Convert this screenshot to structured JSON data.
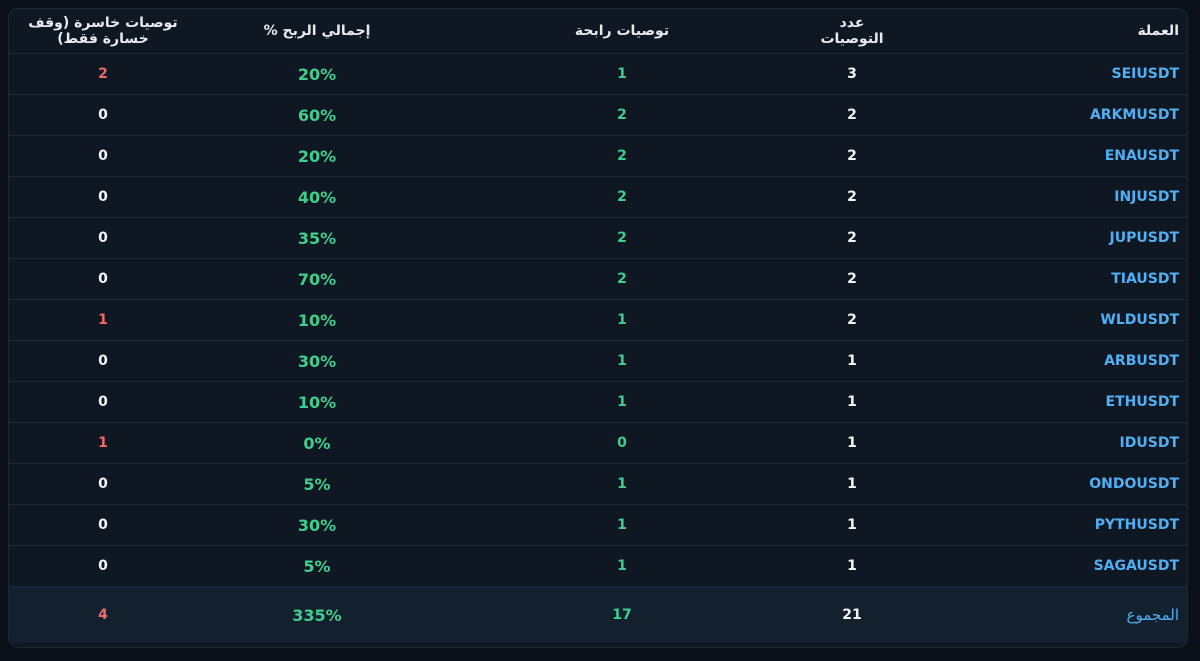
{
  "table": {
    "headers": {
      "coin": "العملة",
      "count": "عدد التوصيات",
      "win": "توصيات رابحة",
      "profit": "إجمالي الربح %",
      "loss": "توصيات خاسرة (وقف خسارة فقط)"
    },
    "rows": [
      {
        "coin": "SEIUSDT",
        "count": "3",
        "win": "1",
        "profit": "20%",
        "loss": "2"
      },
      {
        "coin": "ARKMUSDT",
        "count": "2",
        "win": "2",
        "profit": "60%",
        "loss": "0"
      },
      {
        "coin": "ENAUSDT",
        "count": "2",
        "win": "2",
        "profit": "20%",
        "loss": "0"
      },
      {
        "coin": "INJUSDT",
        "count": "2",
        "win": "2",
        "profit": "40%",
        "loss": "0"
      },
      {
        "coin": "JUPUSDT",
        "count": "2",
        "win": "2",
        "profit": "35%",
        "loss": "0"
      },
      {
        "coin": "TIAUSDT",
        "count": "2",
        "win": "2",
        "profit": "70%",
        "loss": "0"
      },
      {
        "coin": "WLDUSDT",
        "count": "2",
        "win": "1",
        "profit": "10%",
        "loss": "1"
      },
      {
        "coin": "ARBUSDT",
        "count": "1",
        "win": "1",
        "profit": "30%",
        "loss": "0"
      },
      {
        "coin": "ETHUSDT",
        "count": "1",
        "win": "1",
        "profit": "10%",
        "loss": "0"
      },
      {
        "coin": "IDUSDT",
        "count": "1",
        "win": "0",
        "profit": "0%",
        "loss": "1"
      },
      {
        "coin": "ONDOUSDT",
        "count": "1",
        "win": "1",
        "profit": "5%",
        "loss": "0"
      },
      {
        "coin": "PYTHUSDT",
        "count": "1",
        "win": "1",
        "profit": "30%",
        "loss": "0"
      },
      {
        "coin": "SAGAUSDT",
        "count": "1",
        "win": "1",
        "profit": "5%",
        "loss": "0"
      }
    ],
    "total": {
      "label": "المجموع",
      "count": "21",
      "win": "17",
      "profit": "335%",
      "loss": "4"
    }
  },
  "colors": {
    "coin": "#4fb0f5",
    "win": "#3ecf8e",
    "loss": "#f06a6a",
    "text": "#f2f5f9"
  }
}
